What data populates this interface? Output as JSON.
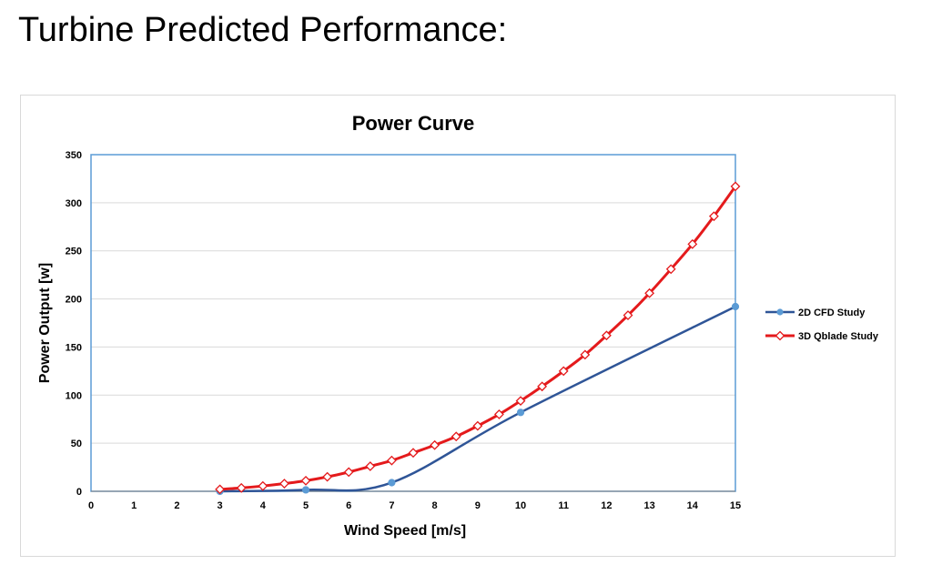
{
  "page": {
    "title": "Turbine Predicted Performance:"
  },
  "chart_data": {
    "type": "line",
    "title": "Power Curve",
    "xlabel": "Wind Speed [m/s]",
    "ylabel": "Power Output [w]",
    "xlim": [
      0,
      15
    ],
    "ylim": [
      0,
      350
    ],
    "x_ticks": [
      0,
      1,
      2,
      3,
      4,
      5,
      6,
      7,
      8,
      9,
      10,
      11,
      12,
      13,
      14,
      15
    ],
    "y_ticks": [
      0,
      50,
      100,
      150,
      200,
      250,
      300,
      350
    ],
    "grid": "horizontal",
    "legend_position": "right",
    "series": [
      {
        "name": "2D CFD Study",
        "color": "#2f5597",
        "marker": "filled-circle",
        "marker_color": "#5b9bd5",
        "smooth": true,
        "x": [
          3,
          5,
          7,
          10,
          15
        ],
        "y": [
          0,
          1.5,
          9,
          82,
          192
        ]
      },
      {
        "name": "3D Qblade Study",
        "color": "#e41a1c",
        "marker": "open-diamond",
        "smooth": true,
        "x": [
          3,
          3.5,
          4,
          4.5,
          5,
          5.5,
          6,
          6.5,
          7,
          7.5,
          8,
          8.5,
          9,
          9.5,
          10,
          10.5,
          11,
          11.5,
          12,
          12.5,
          13,
          13.5,
          14,
          14.5,
          15
        ],
        "y": [
          2,
          3.5,
          5.5,
          8,
          11,
          15,
          20,
          26,
          32,
          40,
          48,
          57,
          68,
          80,
          94,
          109,
          125,
          142,
          162,
          183,
          206,
          231,
          257,
          286,
          317
        ]
      }
    ]
  }
}
